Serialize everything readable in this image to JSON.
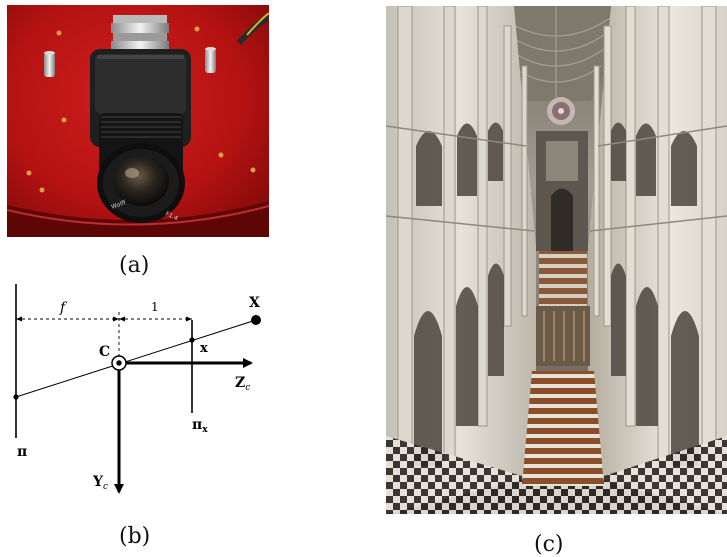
{
  "figure": {
    "panels": [
      {
        "id": "a",
        "caption": "(a)",
        "content": "camera photo"
      },
      {
        "id": "b",
        "caption": "(b)",
        "content": "pinhole camera diagram"
      },
      {
        "id": "c",
        "caption": "(c)",
        "content": "cathedral interior photo"
      }
    ]
  },
  "diagram": {
    "label_f": "f",
    "label_one": "1",
    "label_X": "X",
    "label_x": "x",
    "label_C": "C",
    "label_Z_main": "Z",
    "label_Z_sub": "c",
    "label_Y_main": "Y",
    "label_Y_sub": "c",
    "label_pi": "π",
    "label_pix_main": "π",
    "label_pix_sub": "x"
  },
  "colors": {
    "camera_plate": "#b81414",
    "camera_body": "#1c1c1c",
    "cathedral_stone": "#d6d2c7",
    "vault_shadow": "#7d776c",
    "floor_dark": "#2a2622"
  }
}
